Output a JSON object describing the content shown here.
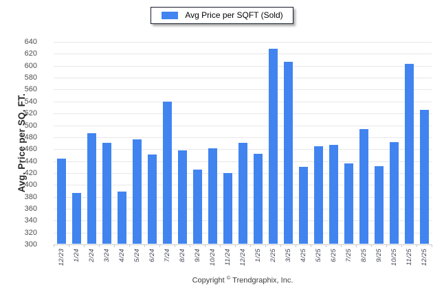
{
  "legend": {
    "label": "Avg Price per SQFT (Sold)",
    "swatch_color": "#4184F0"
  },
  "chart_data": {
    "type": "bar",
    "title": "",
    "xlabel": "",
    "ylabel": "Avg. Price per SQ. FT.",
    "ylim": [
      300,
      640
    ],
    "ytick_step": 20,
    "grid": true,
    "legend_position": "top",
    "categories": [
      "12/23",
      "1/24",
      "2/24",
      "3/24",
      "4/24",
      "5/24",
      "6/24",
      "7/24",
      "8/24",
      "9/24",
      "10/24",
      "11/24",
      "12/24",
      "1/25",
      "2/25",
      "3/25",
      "4/25",
      "5/25",
      "6/25",
      "7/25",
      "8/25",
      "9/25",
      "10/25",
      "11/25",
      "12/25"
    ],
    "series": [
      {
        "name": "Avg Price per SQFT (Sold)",
        "color": "#4184F0",
        "values": [
          443,
          385,
          486,
          470,
          388,
          475,
          450,
          539,
          457,
          425,
          460,
          419,
          469,
          451,
          627,
          605,
          429,
          464,
          466,
          435,
          493,
          430,
          471,
          602,
          525
        ]
      }
    ]
  },
  "footer": {
    "prefix": "Copyright",
    "symbol": "©",
    "suffix": "Trendgraphix, Inc."
  },
  "colors": {
    "bar": "#4184F0",
    "gridline": "#E7E7E7",
    "axis": "#C9C9C9",
    "ytick_label": "#4d4d4d",
    "xtick_label": "#3e4252",
    "ytitle": "#262626",
    "legend_border": "#141a28"
  }
}
